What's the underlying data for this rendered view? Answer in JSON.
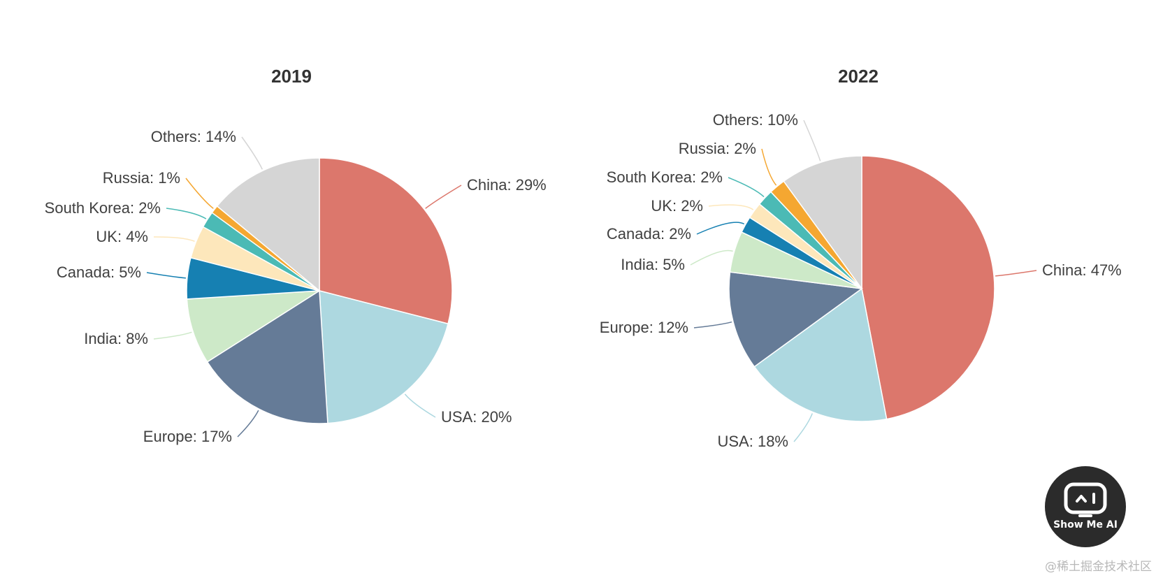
{
  "colors": {
    "China": "#dc776c",
    "USA": "#add8e0",
    "Europe": "#657b97",
    "India": "#cde9c8",
    "Canada": "#1680b2",
    "UK": "#fde7bb",
    "South Korea": "#4bbab5",
    "Russia": "#f5a731",
    "Others": "#d5d5d5"
  },
  "chart_data": [
    {
      "type": "pie",
      "title": "2019",
      "unit": "%",
      "slices": [
        {
          "name": "China",
          "value": 29,
          "label": "China: 29%"
        },
        {
          "name": "USA",
          "value": 20,
          "label": "USA: 20%"
        },
        {
          "name": "Europe",
          "value": 17,
          "label": "Europe: 17%"
        },
        {
          "name": "India",
          "value": 8,
          "label": "India: 8%"
        },
        {
          "name": "Canada",
          "value": 5,
          "label": "Canada: 5%"
        },
        {
          "name": "UK",
          "value": 4,
          "label": "UK: 4%"
        },
        {
          "name": "South Korea",
          "value": 2,
          "label": "South Korea: 2%"
        },
        {
          "name": "Russia",
          "value": 1,
          "label": "Russia: 1%"
        },
        {
          "name": "Others",
          "value": 14,
          "label": "Others: 14%"
        }
      ]
    },
    {
      "type": "pie",
      "title": "2022",
      "unit": "%",
      "slices": [
        {
          "name": "China",
          "value": 47,
          "label": "China: 47%"
        },
        {
          "name": "USA",
          "value": 18,
          "label": "USA: 18%"
        },
        {
          "name": "Europe",
          "value": 12,
          "label": "Europe: 12%"
        },
        {
          "name": "India",
          "value": 5,
          "label": "India: 5%"
        },
        {
          "name": "Canada",
          "value": 2,
          "label": "Canada: 2%"
        },
        {
          "name": "UK",
          "value": 2,
          "label": "UK: 2%"
        },
        {
          "name": "South Korea",
          "value": 2,
          "label": "South Korea: 2%"
        },
        {
          "name": "Russia",
          "value": 2,
          "label": "Russia: 2%"
        },
        {
          "name": "Others",
          "value": 10,
          "label": "Others: 10%"
        }
      ]
    }
  ],
  "logo": {
    "text": "Show Me AI"
  },
  "watermark": "@稀土掘金技术社区"
}
